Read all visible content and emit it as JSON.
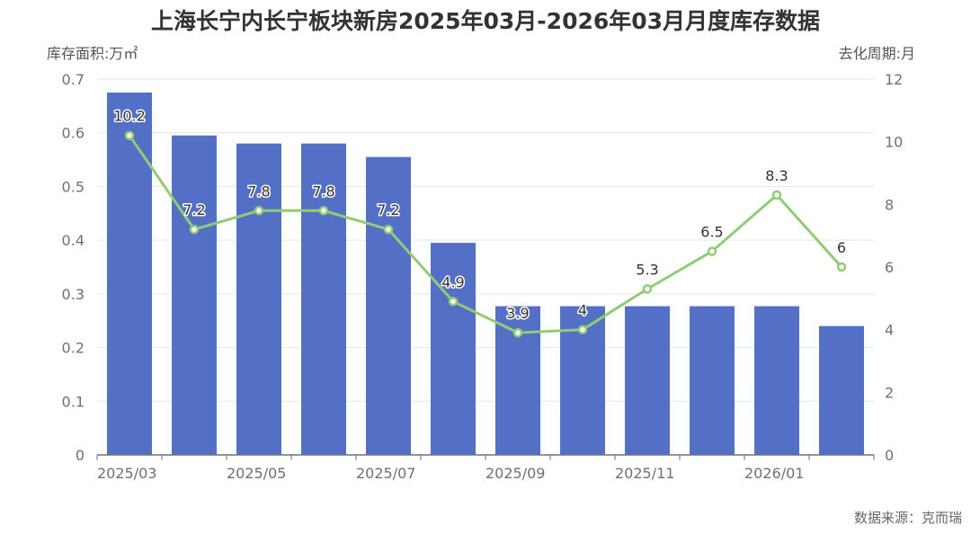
{
  "page": {
    "title": "上海长宁内长宁板块新房2025年03月-2026年03月月度库存数据",
    "y_left_label": "库存面积:万㎡",
    "y_right_label": "去化周期:月",
    "source": "数据来源：克而瑞"
  },
  "chart_data": {
    "type": "bar",
    "title": "上海长宁内长宁板块新房2025年03月-2026年03月月度库存数据",
    "ylabel": "库存面积:万㎡",
    "y2label": "去化周期:月",
    "categories": [
      "2025/03",
      "2025/04",
      "2025/05",
      "2025/06",
      "2025/07",
      "2025/08",
      "2025/09",
      "2025/10",
      "2025/11",
      "2025/12",
      "2026/01",
      "2026/02",
      "2026/03"
    ],
    "x_tick_labels": [
      "2025/03",
      "2025/05",
      "2025/07",
      "2025/09",
      "2025/11",
      "2026/01"
    ],
    "ylim": [
      0,
      0.7
    ],
    "y_ticks": [
      0,
      0.1,
      0.2,
      0.3,
      0.4,
      0.5,
      0.6,
      0.7
    ],
    "y2lim": [
      0,
      12
    ],
    "y2_ticks": [
      0,
      2,
      4,
      6,
      8,
      10,
      12
    ],
    "grid": true,
    "colors": {
      "bar": "#5470c6",
      "line": "#91cc75",
      "grid": "#e0e6f1",
      "axis": "#6e7079"
    },
    "series": [
      {
        "type": "bar",
        "axis": "left",
        "values": [
          0.675,
          0.595,
          0.58,
          0.58,
          0.555,
          0.395,
          0.277,
          0.277,
          0.277,
          0.277,
          0.277,
          0.24,
          null
        ]
      },
      {
        "type": "line",
        "axis": "right",
        "values": [
          10.2,
          7.2,
          7.8,
          7.8,
          7.2,
          4.9,
          3.9,
          4,
          5.3,
          6.5,
          8.3,
          6,
          null
        ],
        "labels": [
          "10.2",
          "7.2",
          "7.8",
          "7.8",
          "7.2",
          "4.9",
          "3.9",
          "4",
          "5.3",
          "6.5",
          "8.3",
          "6",
          ""
        ]
      }
    ]
  }
}
